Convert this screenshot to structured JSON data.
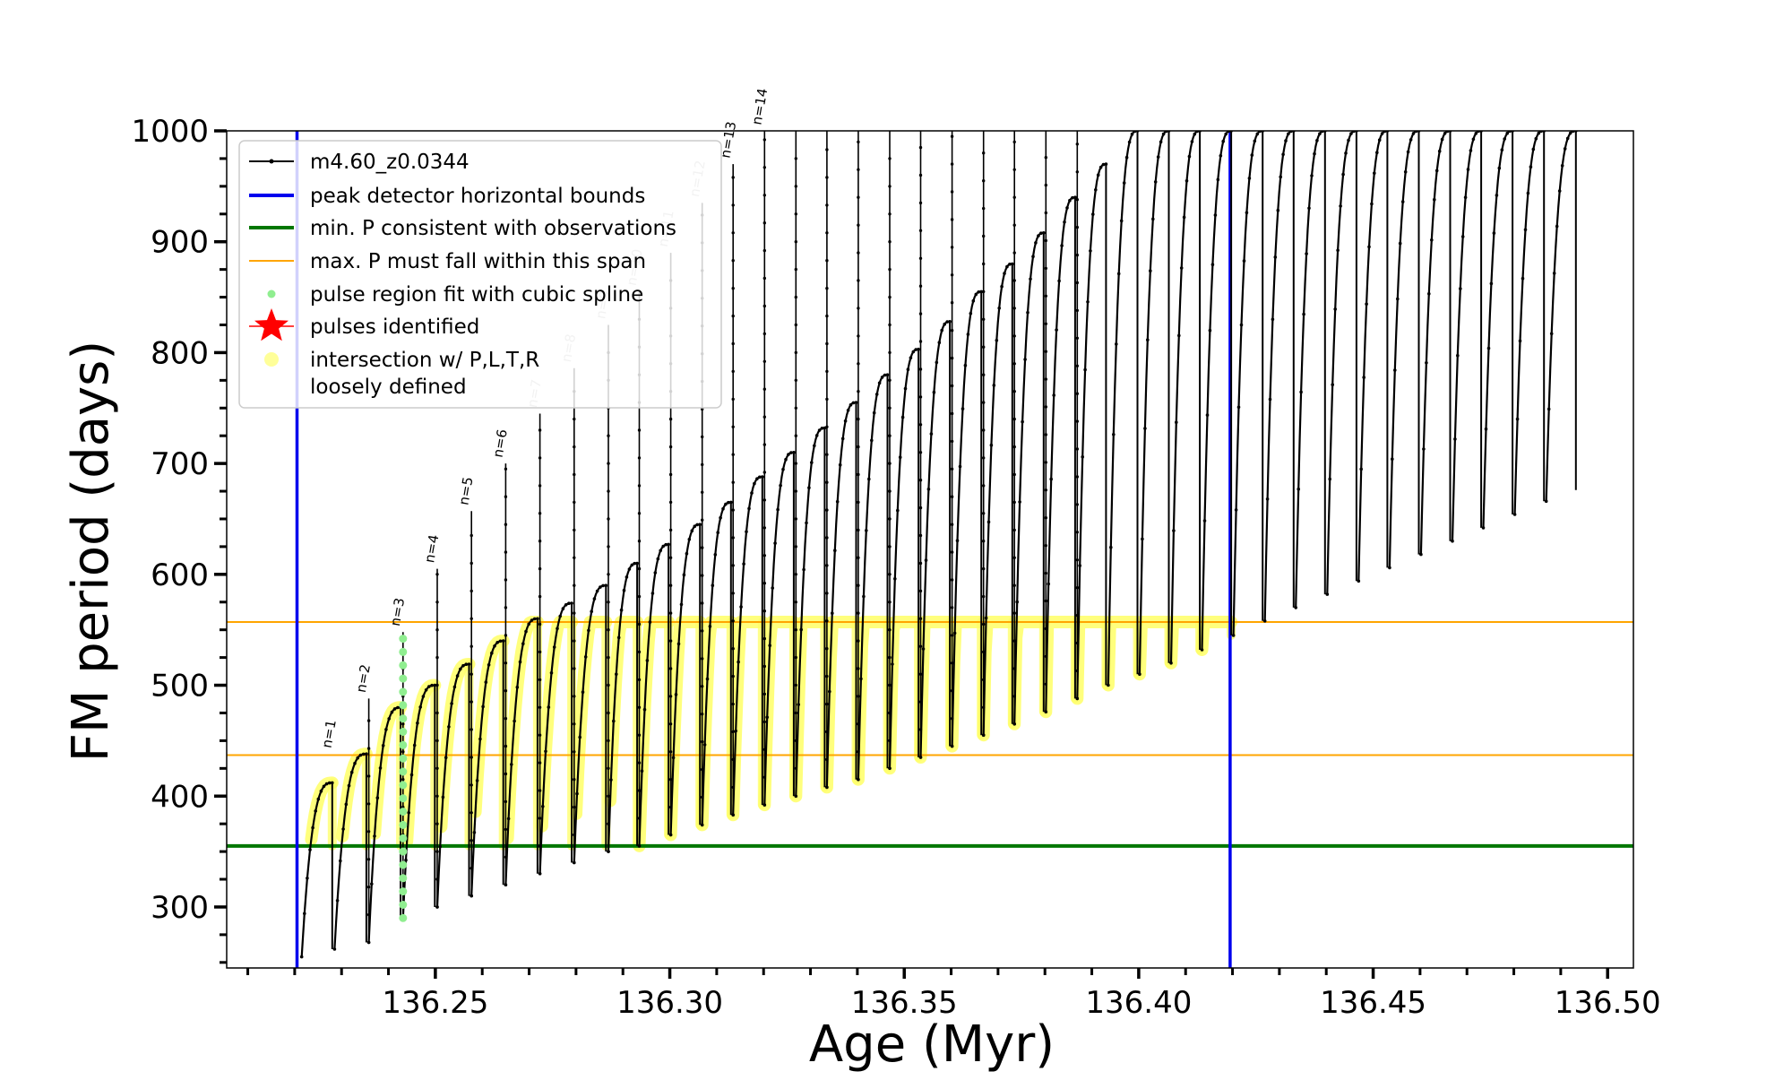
{
  "chart_data": {
    "type": "line",
    "xlabel": "Age (Myr)",
    "ylabel": "FM period (days)",
    "xlim": [
      136.2055,
      136.5055
    ],
    "ylim": [
      245,
      1000
    ],
    "xticks": [
      136.25,
      136.3,
      136.35,
      136.4,
      136.45,
      136.5
    ],
    "xtick_labels": [
      "136.25",
      "136.30",
      "136.35",
      "136.40",
      "136.45",
      "136.50"
    ],
    "yticks": [
      300,
      400,
      500,
      600,
      700,
      800,
      900,
      1000
    ],
    "ytick_labels": [
      "300",
      "400",
      "500",
      "600",
      "700",
      "800",
      "900",
      "1000"
    ],
    "grid": false,
    "legend_position": "top-left",
    "legend": [
      {
        "label": "m4.60_z0.0344",
        "marker": "line-dot",
        "color": "#000000"
      },
      {
        "label": "peak detector horizontal bounds",
        "marker": "line",
        "color": "#0000ee"
      },
      {
        "label": "min. P consistent with observations",
        "marker": "line",
        "color": "#007700"
      },
      {
        "label": "max. P must fall within this span",
        "marker": "line",
        "color": "#ffa500"
      },
      {
        "label": "pulse region fit with cubic spline",
        "marker": "dot",
        "color": "#90ee90"
      },
      {
        "label": "pulses identified",
        "marker": "star",
        "color": "#ff0000"
      },
      {
        "label": "intersection w/ P,L,T,R",
        "marker": "dot",
        "color": "#ffff99"
      },
      {
        "label": "loosely defined",
        "marker": "none",
        "color": "#ffff99"
      }
    ],
    "vertical_lines": [
      {
        "name": "peak detector horizontal bounds",
        "x": 136.2205,
        "color": "#0000ee"
      },
      {
        "name": "peak detector horizontal bounds",
        "x": 136.4195,
        "color": "#0000ee"
      }
    ],
    "horizontal_lines": [
      {
        "name": "min. P consistent with observations",
        "y": 355,
        "color": "#007700"
      },
      {
        "name": "max. P must fall within this span",
        "y": 437,
        "color": "#ffa500"
      },
      {
        "name": "max. P must fall within this span",
        "y": 557,
        "color": "#ffa500"
      }
    ],
    "series": [
      {
        "name": "m4.60_z0.0344",
        "color": "#000000",
        "pulses": [
          {
            "x": 136.2215,
            "min": 255,
            "peak": 412,
            "spike": 412
          },
          {
            "x": 136.2285,
            "min": 262,
            "peak": 438,
            "spike": 438
          },
          {
            "x": 136.2358,
            "min": 268,
            "peak": 480,
            "spike": 488
          },
          {
            "x": 136.2431,
            "min": 290,
            "peak": 500,
            "spike": 548
          },
          {
            "x": 136.2504,
            "min": 300,
            "peak": 519,
            "spike": 605
          },
          {
            "x": 136.2577,
            "min": 310,
            "peak": 540,
            "spike": 657
          },
          {
            "x": 136.265,
            "min": 320,
            "peak": 560,
            "spike": 700
          },
          {
            "x": 136.2723,
            "min": 330,
            "peak": 574,
            "spike": 745
          },
          {
            "x": 136.2796,
            "min": 340,
            "peak": 590,
            "spike": 786
          },
          {
            "x": 136.2869,
            "min": 350,
            "peak": 610,
            "spike": 825
          },
          {
            "x": 136.2935,
            "min": 355,
            "peak": 627,
            "spike": 855
          },
          {
            "x": 136.3002,
            "min": 365,
            "peak": 645,
            "spike": 890
          },
          {
            "x": 136.3069,
            "min": 374,
            "peak": 665,
            "spike": 935
          },
          {
            "x": 136.3135,
            "min": 383,
            "peak": 688,
            "spike": 970
          },
          {
            "x": 136.3202,
            "min": 392,
            "peak": 710,
            "spike": 1000
          },
          {
            "x": 136.3269,
            "min": 400,
            "peak": 732,
            "spike": 1000
          },
          {
            "x": 136.3335,
            "min": 408,
            "peak": 755,
            "spike": 1000
          },
          {
            "x": 136.3402,
            "min": 415,
            "peak": 780,
            "spike": 1000
          },
          {
            "x": 136.3469,
            "min": 425,
            "peak": 803,
            "spike": 1000
          },
          {
            "x": 136.3535,
            "min": 435,
            "peak": 828,
            "spike": 1000
          },
          {
            "x": 136.3602,
            "min": 445,
            "peak": 855,
            "spike": 1000
          },
          {
            "x": 136.3669,
            "min": 455,
            "peak": 880,
            "spike": 1000
          },
          {
            "x": 136.3735,
            "min": 465,
            "peak": 908,
            "spike": 1000
          },
          {
            "x": 136.3802,
            "min": 476,
            "peak": 940,
            "spike": 1000
          },
          {
            "x": 136.3869,
            "min": 488,
            "peak": 970,
            "spike": 1000
          },
          {
            "x": 136.3935,
            "min": 500,
            "peak": 1000,
            "spike": 1000
          },
          {
            "x": 136.4002,
            "min": 510,
            "peak": 1000,
            "spike": 1000
          },
          {
            "x": 136.4069,
            "min": 520,
            "peak": 1000,
            "spike": 1000
          },
          {
            "x": 136.4135,
            "min": 532,
            "peak": 1000,
            "spike": 1000
          },
          {
            "x": 136.4202,
            "min": 545,
            "peak": 1000,
            "spike": 1000
          },
          {
            "x": 136.4269,
            "min": 558,
            "peak": 1000,
            "spike": 1000
          },
          {
            "x": 136.4335,
            "min": 570,
            "peak": 1000,
            "spike": 1000
          },
          {
            "x": 136.4402,
            "min": 582,
            "peak": 1000,
            "spike": 1000
          },
          {
            "x": 136.4469,
            "min": 594,
            "peak": 1000,
            "spike": 1000
          },
          {
            "x": 136.4535,
            "min": 606,
            "peak": 1000,
            "spike": 1000
          },
          {
            "x": 136.4602,
            "min": 618,
            "peak": 1000,
            "spike": 1000
          },
          {
            "x": 136.4669,
            "min": 630,
            "peak": 1000,
            "spike": 1000
          },
          {
            "x": 136.4735,
            "min": 642,
            "peak": 1000,
            "spike": 1000
          },
          {
            "x": 136.4802,
            "min": 654,
            "peak": 1000,
            "spike": 1000
          },
          {
            "x": 136.4869,
            "min": 666,
            "peak": 1000,
            "spike": 1000
          }
        ]
      }
    ],
    "pulse_labels": [
      {
        "text": "n=1",
        "x": 136.2285,
        "y": 438,
        "faint": false
      },
      {
        "text": "n=2",
        "x": 136.2358,
        "y": 488,
        "faint": false
      },
      {
        "text": "n=3",
        "x": 136.2431,
        "y": 548,
        "faint": false
      },
      {
        "text": "n=4",
        "x": 136.2504,
        "y": 605,
        "faint": false
      },
      {
        "text": "n=5",
        "x": 136.2577,
        "y": 657,
        "faint": false
      },
      {
        "text": "n=6",
        "x": 136.265,
        "y": 700,
        "faint": false
      },
      {
        "text": "n=7",
        "x": 136.2723,
        "y": 745,
        "faint": true
      },
      {
        "text": "n=8",
        "x": 136.2796,
        "y": 786,
        "faint": true
      },
      {
        "text": "n=9",
        "x": 136.2869,
        "y": 825,
        "faint": true
      },
      {
        "text": "n=10",
        "x": 136.2935,
        "y": 855,
        "faint": true
      },
      {
        "text": "n=11",
        "x": 136.3002,
        "y": 890,
        "faint": true
      },
      {
        "text": "n=12",
        "x": 136.3069,
        "y": 935,
        "faint": true
      },
      {
        "text": "n=13",
        "x": 136.3135,
        "y": 970,
        "faint": false
      },
      {
        "text": "n=14",
        "x": 136.3202,
        "y": 1000,
        "faint": false
      }
    ]
  }
}
